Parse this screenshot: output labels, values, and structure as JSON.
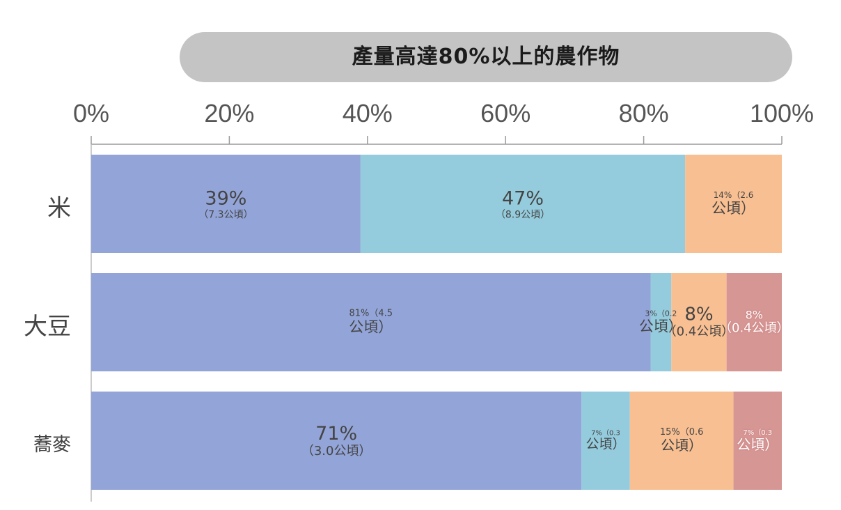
{
  "title": "產量高達80%以上的農作物",
  "colors": {
    "seg1": "#93a5d8",
    "seg2": "#95ccdd",
    "seg3": "#f8bf92",
    "seg4": "#d69694",
    "axis": "#9a9a9a",
    "pill": "#c4c4c4"
  },
  "chart_data": {
    "type": "bar",
    "orientation": "horizontal",
    "stacked": true,
    "xlim": [
      0,
      100
    ],
    "x_ticks": [
      "0%",
      "20%",
      "40%",
      "60%",
      "80%",
      "100%"
    ],
    "categories": [
      "米",
      "大豆",
      "蕎麥"
    ],
    "series": [
      {
        "values": [
          39,
          81,
          71
        ]
      },
      {
        "values": [
          47,
          3,
          7
        ]
      },
      {
        "values": [
          14,
          8,
          15
        ]
      },
      {
        "values": [
          0,
          8,
          7
        ]
      }
    ],
    "data_labels": [
      [
        {
          "pct": "39%",
          "sub": "（7.3公頃）"
        },
        {
          "pct": "47%",
          "sub": "（8.9公頃）"
        },
        {
          "pct": "14%（2.6",
          "sub": "公頃）"
        }
      ],
      [
        {
          "pct": "81%（4.5",
          "sub": "公頃）"
        },
        {
          "pct": "3%（0.2",
          "sub": "公頃）"
        },
        {
          "pct": "8%",
          "sub": "（0.4公頃）"
        },
        {
          "pct": "8%",
          "sub": "（0.4公頃）"
        }
      ],
      [
        {
          "pct": "71%",
          "sub": "（3.0公頃）"
        },
        {
          "pct": "7%（0.3",
          "sub": "公頃）"
        },
        {
          "pct": "15%（0.6",
          "sub": "公頃）"
        },
        {
          "pct": "7%（0.3",
          "sub": "公頃）"
        }
      ]
    ]
  }
}
